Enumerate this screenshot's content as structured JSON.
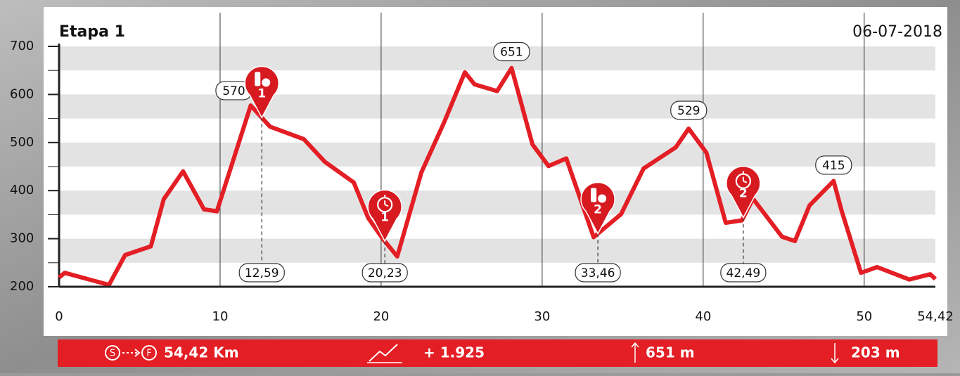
{
  "chart_data": {
    "type": "area",
    "title": "Etapa 1",
    "date": "06-07-2018",
    "color": "#e31e24",
    "x": [
      0,
      0.35,
      3.1,
      4.1,
      5.7,
      6.5,
      7.7,
      9.0,
      9.8,
      11.9,
      13.1,
      15.2,
      16.5,
      18.3,
      19.2,
      20.1,
      21.0,
      22.5,
      23.9,
      25.2,
      25.8,
      27.2,
      28.1,
      29.4,
      30.4,
      31.5,
      33.2,
      34.9,
      36.3,
      38.3,
      39.1,
      40.2,
      41.4,
      42.4,
      43.1,
      44.9,
      45.7,
      46.6,
      48.1,
      48.6,
      49.8,
      50.8,
      52.8,
      54.1,
      54.42
    ],
    "values": [
      219,
      229,
      204,
      266,
      284,
      382,
      440,
      361,
      357,
      577,
      533,
      507,
      460,
      417,
      343,
      300,
      263,
      438,
      541,
      646,
      621,
      607,
      655,
      496,
      451,
      467,
      303,
      351,
      446,
      490,
      529,
      479,
      333,
      338,
      383,
      304,
      295,
      369,
      420,
      358,
      229,
      241,
      215,
      226,
      216
    ],
    "xlim": [
      0,
      54.42
    ],
    "ylim": [
      200,
      700
    ],
    "xticks": [
      0,
      10,
      20,
      30,
      40,
      50,
      {
        "value": 54.42,
        "label": "54,42"
      }
    ],
    "yticks": [
      200,
      300,
      400,
      500,
      600,
      700
    ],
    "peaks": [
      {
        "x": 11.9,
        "value": 570
      },
      {
        "x": 28.1,
        "value": 651
      },
      {
        "x": 39.1,
        "value": 529
      },
      {
        "x": 48.1,
        "value": 415
      }
    ],
    "waypoints": [
      {
        "x": {
          "value": 12.59,
          "label": "12,59"
        },
        "kind": "food",
        "number": "1"
      },
      {
        "x": {
          "value": 20.23,
          "label": "20,23"
        },
        "kind": "timer",
        "number": "1"
      },
      {
        "x": {
          "value": 33.46,
          "label": "33,46"
        },
        "kind": "food",
        "number": "2"
      },
      {
        "x": {
          "value": 42.49,
          "label": "42,49"
        },
        "kind": "timer",
        "number": "2"
      }
    ],
    "summary": {
      "distance": "54,42 Km",
      "gain": "+ 1.925",
      "max": "651 m",
      "min": "203 m"
    }
  }
}
